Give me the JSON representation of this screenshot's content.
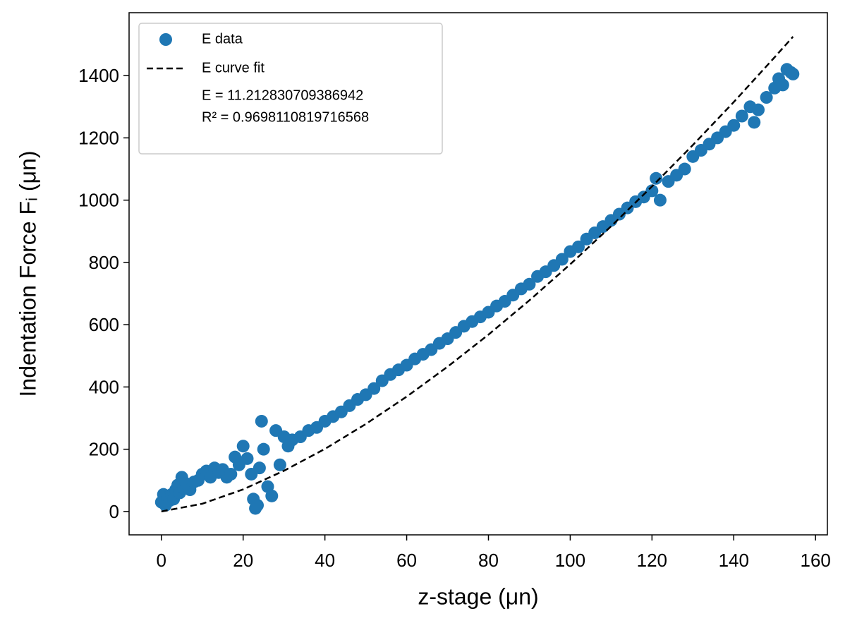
{
  "chart_data": {
    "type": "scatter",
    "xlabel": "z-stage (μn)",
    "ylabel": "Indentation Force Fᵢ (μn)",
    "xlim": [
      -7.9,
      162.9
    ],
    "ylim": [
      -75,
      1602
    ],
    "xticks": [
      0,
      20,
      40,
      60,
      80,
      100,
      120,
      140,
      160
    ],
    "yticks": [
      0,
      200,
      400,
      600,
      800,
      1000,
      1200,
      1400
    ],
    "legend": "upper left",
    "annotations": [
      "E = 11.212830709386942",
      "R² = 0.9698110819716568"
    ],
    "series": [
      {
        "name": "E data",
        "kind": "scatter",
        "color": "#1f77b4",
        "x": [
          0,
          0.5,
          1,
          1.5,
          2,
          2.5,
          3,
          3.5,
          4,
          4.5,
          5,
          5.5,
          6,
          7,
          8,
          9,
          10,
          11,
          12,
          13,
          14,
          15,
          16,
          17,
          18,
          19,
          20,
          21,
          22,
          22.5,
          23,
          23.5,
          24,
          24.5,
          25,
          26,
          27,
          28,
          29,
          30,
          31,
          32,
          34,
          36,
          38,
          40,
          42,
          44,
          46,
          48,
          50,
          52,
          54,
          56,
          58,
          60,
          62,
          64,
          66,
          68,
          70,
          72,
          74,
          76,
          78,
          80,
          82,
          84,
          86,
          88,
          90,
          92,
          94,
          96,
          98,
          100,
          102,
          104,
          106,
          108,
          110,
          112,
          114,
          116,
          118,
          120,
          121,
          122,
          124,
          126,
          128,
          130,
          132,
          134,
          136,
          138,
          140,
          142,
          144,
          145,
          146,
          148,
          150,
          151,
          152,
          153,
          154,
          154.5
        ],
        "values": [
          30,
          55,
          20,
          45,
          35,
          55,
          40,
          70,
          85,
          60,
          110,
          75,
          90,
          70,
          95,
          100,
          120,
          130,
          110,
          140,
          125,
          135,
          110,
          120,
          175,
          150,
          210,
          170,
          120,
          40,
          10,
          20,
          140,
          290,
          200,
          80,
          50,
          260,
          150,
          240,
          210,
          230,
          240,
          260,
          270,
          290,
          305,
          320,
          340,
          360,
          375,
          395,
          420,
          440,
          455,
          470,
          490,
          505,
          520,
          540,
          555,
          575,
          595,
          610,
          625,
          640,
          660,
          675,
          695,
          715,
          730,
          755,
          770,
          790,
          810,
          835,
          850,
          875,
          895,
          915,
          935,
          955,
          975,
          995,
          1010,
          1030,
          1070,
          1000,
          1060,
          1080,
          1100,
          1140,
          1160,
          1180,
          1200,
          1220,
          1240,
          1270,
          1300,
          1250,
          1290,
          1330,
          1360,
          1390,
          1370,
          1420,
          1410,
          1405
        ]
      },
      {
        "name": "E curve fit",
        "kind": "line",
        "color": "#000000",
        "dash": true,
        "x": [
          0,
          10,
          20,
          30,
          40,
          50,
          60,
          70,
          80,
          90,
          100,
          110,
          120,
          130,
          140,
          150,
          154.5
        ],
        "values": [
          0,
          25,
          71,
          131,
          201,
          281,
          369,
          465,
          568,
          678,
          794,
          916,
          1044,
          1177,
          1315,
          1459,
          1525
        ]
      }
    ]
  }
}
